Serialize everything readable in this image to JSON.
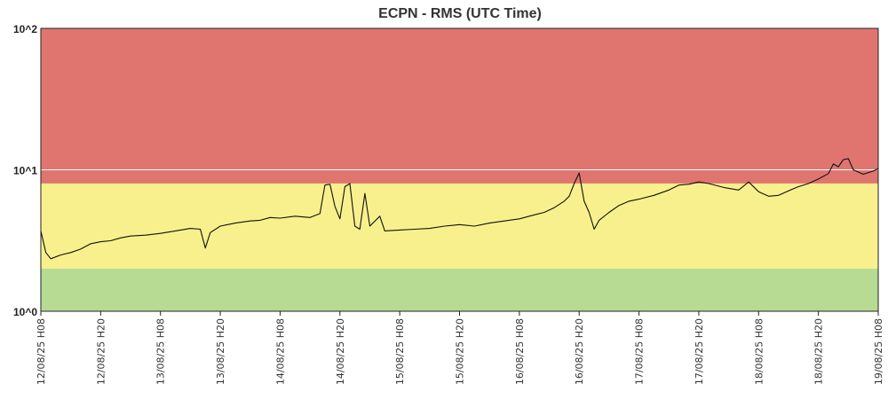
{
  "chart_data": {
    "type": "line",
    "title": "ECPN - RMS (UTC Time)",
    "y_scale": "log",
    "ylim": [
      1,
      100
    ],
    "y_ticks": [
      {
        "value": 100,
        "label": "10^2"
      },
      {
        "value": 10,
        "label": "10^1"
      },
      {
        "value": 1,
        "label": "10^0"
      }
    ],
    "xlim": [
      "2025-08-12T08:00",
      "2025-08-19T08:00"
    ],
    "x_ticks": [
      {
        "value": "2025-08-12T08:00",
        "label": "12/08/25 H08"
      },
      {
        "value": "2025-08-12T20:00",
        "label": "12/08/25 H20"
      },
      {
        "value": "2025-08-13T08:00",
        "label": "13/08/25 H08"
      },
      {
        "value": "2025-08-13T20:00",
        "label": "13/08/25 H20"
      },
      {
        "value": "2025-08-14T08:00",
        "label": "14/08/25 H08"
      },
      {
        "value": "2025-08-14T20:00",
        "label": "14/08/25 H20"
      },
      {
        "value": "2025-08-15T08:00",
        "label": "15/08/25 H08"
      },
      {
        "value": "2025-08-15T20:00",
        "label": "15/08/25 H20"
      },
      {
        "value": "2025-08-16T08:00",
        "label": "16/08/25 H08"
      },
      {
        "value": "2025-08-16T20:00",
        "label": "16/08/25 H20"
      },
      {
        "value": "2025-08-17T08:00",
        "label": "17/08/25 H08"
      },
      {
        "value": "2025-08-17T20:00",
        "label": "17/08/25 H20"
      },
      {
        "value": "2025-08-18T08:00",
        "label": "18/08/25 H08"
      },
      {
        "value": "2025-08-18T20:00",
        "label": "18/08/25 H20"
      },
      {
        "value": "2025-08-19T08:00",
        "label": "19/08/25 H08"
      }
    ],
    "bands": [
      {
        "name": "high",
        "from": 8,
        "to": 100,
        "color": "#e07570"
      },
      {
        "name": "medium",
        "from": 2,
        "to": 8,
        "color": "#f8f08c"
      },
      {
        "name": "low",
        "from": 1,
        "to": 2,
        "color": "#b7db92"
      }
    ],
    "reference_lines": [
      {
        "value": 10,
        "color": "#ffffff"
      }
    ],
    "grid": false,
    "line_color": "#111111",
    "series": [
      {
        "values": [
          [
            "2025-08-12T08:00",
            3.7
          ],
          [
            "2025-08-12T09:00",
            2.6
          ],
          [
            "2025-08-12T10:00",
            2.35
          ],
          [
            "2025-08-12T12:00",
            2.5
          ],
          [
            "2025-08-12T14:00",
            2.6
          ],
          [
            "2025-08-12T16:00",
            2.75
          ],
          [
            "2025-08-12T18:00",
            3.0
          ],
          [
            "2025-08-12T20:00",
            3.1
          ],
          [
            "2025-08-12T22:00",
            3.15
          ],
          [
            "2025-08-13T00:00",
            3.3
          ],
          [
            "2025-08-13T02:00",
            3.4
          ],
          [
            "2025-08-13T05:00",
            3.45
          ],
          [
            "2025-08-13T08:00",
            3.55
          ],
          [
            "2025-08-13T11:00",
            3.7
          ],
          [
            "2025-08-13T14:00",
            3.85
          ],
          [
            "2025-08-13T16:00",
            3.8
          ],
          [
            "2025-08-13T17:00",
            2.8
          ],
          [
            "2025-08-13T18:00",
            3.6
          ],
          [
            "2025-08-13T20:00",
            4.0
          ],
          [
            "2025-08-13T23:00",
            4.2
          ],
          [
            "2025-08-14T02:00",
            4.35
          ],
          [
            "2025-08-14T04:00",
            4.4
          ],
          [
            "2025-08-14T06:00",
            4.6
          ],
          [
            "2025-08-14T08:00",
            4.55
          ],
          [
            "2025-08-14T11:00",
            4.7
          ],
          [
            "2025-08-14T14:00",
            4.6
          ],
          [
            "2025-08-14T16:00",
            4.9
          ],
          [
            "2025-08-14T17:00",
            7.8
          ],
          [
            "2025-08-14T18:00",
            7.9
          ],
          [
            "2025-08-14T19:00",
            5.5
          ],
          [
            "2025-08-14T20:00",
            4.5
          ],
          [
            "2025-08-14T21:00",
            7.6
          ],
          [
            "2025-08-14T22:00",
            8.0
          ],
          [
            "2025-08-14T23:00",
            4.0
          ],
          [
            "2025-08-15T00:00",
            3.8
          ],
          [
            "2025-08-15T01:00",
            6.8
          ],
          [
            "2025-08-15T02:00",
            4.0
          ],
          [
            "2025-08-15T04:00",
            4.7
          ],
          [
            "2025-08-15T05:00",
            3.7
          ],
          [
            "2025-08-15T08:00",
            3.75
          ],
          [
            "2025-08-15T11:00",
            3.8
          ],
          [
            "2025-08-15T14:00",
            3.85
          ],
          [
            "2025-08-15T17:00",
            4.0
          ],
          [
            "2025-08-15T20:00",
            4.1
          ],
          [
            "2025-08-15T23:00",
            4.0
          ],
          [
            "2025-08-16T02:00",
            4.2
          ],
          [
            "2025-08-16T05:00",
            4.35
          ],
          [
            "2025-08-16T08:00",
            4.5
          ],
          [
            "2025-08-16T11:00",
            4.8
          ],
          [
            "2025-08-16T13:00",
            5.0
          ],
          [
            "2025-08-16T15:00",
            5.4
          ],
          [
            "2025-08-16T17:00",
            6.0
          ],
          [
            "2025-08-16T18:00",
            6.5
          ],
          [
            "2025-08-16T19:00",
            8.0
          ],
          [
            "2025-08-16T20:00",
            9.5
          ],
          [
            "2025-08-16T21:00",
            6.0
          ],
          [
            "2025-08-16T22:00",
            5.0
          ],
          [
            "2025-08-16T23:00",
            3.8
          ],
          [
            "2025-08-17T00:00",
            4.4
          ],
          [
            "2025-08-17T02:00",
            5.0
          ],
          [
            "2025-08-17T04:00",
            5.6
          ],
          [
            "2025-08-17T06:00",
            6.0
          ],
          [
            "2025-08-17T08:00",
            6.2
          ],
          [
            "2025-08-17T11:00",
            6.6
          ],
          [
            "2025-08-17T14:00",
            7.2
          ],
          [
            "2025-08-17T16:00",
            7.8
          ],
          [
            "2025-08-17T18:00",
            7.9
          ],
          [
            "2025-08-17T20:00",
            8.2
          ],
          [
            "2025-08-17T22:00",
            8.0
          ],
          [
            "2025-08-18T01:00",
            7.5
          ],
          [
            "2025-08-18T04:00",
            7.2
          ],
          [
            "2025-08-18T06:00",
            8.2
          ],
          [
            "2025-08-18T08:00",
            7.0
          ],
          [
            "2025-08-18T10:00",
            6.5
          ],
          [
            "2025-08-18T12:00",
            6.6
          ],
          [
            "2025-08-18T14:00",
            7.1
          ],
          [
            "2025-08-18T16:00",
            7.6
          ],
          [
            "2025-08-18T18:00",
            8.0
          ],
          [
            "2025-08-18T20:00",
            8.6
          ],
          [
            "2025-08-18T22:00",
            9.4
          ],
          [
            "2025-08-18T23:00",
            11.0
          ],
          [
            "2025-08-19T00:00",
            10.5
          ],
          [
            "2025-08-19T01:00",
            11.8
          ],
          [
            "2025-08-19T02:00",
            12.0
          ],
          [
            "2025-08-19T03:00",
            10.0
          ],
          [
            "2025-08-19T05:00",
            9.3
          ],
          [
            "2025-08-19T07:00",
            9.8
          ],
          [
            "2025-08-19T08:00",
            10.2
          ]
        ]
      }
    ]
  }
}
